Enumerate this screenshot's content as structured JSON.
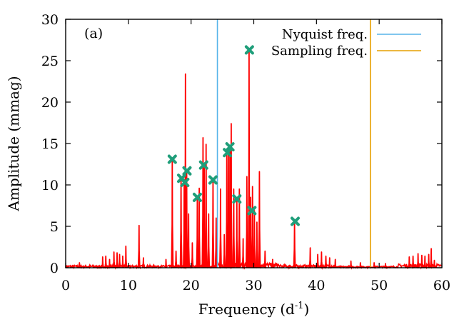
{
  "chart_data": {
    "type": "line",
    "panel_label": "(a)",
    "xlabel": "Frequency (d",
    "xlabel_superscript": "-1",
    "xlabel_suffix": ")",
    "ylabel": "Amplitude (mmag)",
    "xlim": [
      0,
      60
    ],
    "ylim": [
      0,
      30
    ],
    "xticks": [
      0,
      10,
      20,
      30,
      40,
      50,
      60
    ],
    "yticks": [
      0,
      5,
      10,
      15,
      20,
      25,
      30
    ],
    "grid": false,
    "legend_position": "top-right",
    "series": [
      {
        "kind": "spectrum",
        "color": "#ff0000",
        "noise_ranges": [
          [
            0,
            24,
            0.3
          ],
          [
            24,
            34,
            0.6
          ],
          [
            34,
            43,
            0.35
          ],
          [
            43,
            53,
            0.2
          ],
          [
            53,
            60,
            0.45
          ]
        ],
        "peaks": [
          [
            2.2,
            0.6
          ],
          [
            5.9,
            1.3
          ],
          [
            6.4,
            1.4
          ],
          [
            7.0,
            1.0
          ],
          [
            7.7,
            1.9
          ],
          [
            8.2,
            1.8
          ],
          [
            8.6,
            1.6
          ],
          [
            9.1,
            1.4
          ],
          [
            9.6,
            2.6
          ],
          [
            11.7,
            5.1
          ],
          [
            12.4,
            1.2
          ],
          [
            16.0,
            1.0
          ],
          [
            17.0,
            13.1
          ],
          [
            17.6,
            2.0
          ],
          [
            18.4,
            10.9
          ],
          [
            18.9,
            10.3
          ],
          [
            19.1,
            23.4
          ],
          [
            19.3,
            11.8
          ],
          [
            19.6,
            6.5
          ],
          [
            20.2,
            3.0
          ],
          [
            21.0,
            8.6
          ],
          [
            21.3,
            9.6
          ],
          [
            21.9,
            15.7
          ],
          [
            22.1,
            12.4
          ],
          [
            22.4,
            14.9
          ],
          [
            22.8,
            6.5
          ],
          [
            23.5,
            10.6
          ],
          [
            24.0,
            6.0
          ],
          [
            24.7,
            9.5
          ],
          [
            25.3,
            4.0
          ],
          [
            25.7,
            13.9
          ],
          [
            25.95,
            14.2
          ],
          [
            26.2,
            14.7
          ],
          [
            26.4,
            17.4
          ],
          [
            26.8,
            9.5
          ],
          [
            27.3,
            8.3
          ],
          [
            27.7,
            9.5
          ],
          [
            28.3,
            3.5
          ],
          [
            28.9,
            11.0
          ],
          [
            29.25,
            26.4
          ],
          [
            29.5,
            8.5
          ],
          [
            29.8,
            9.8
          ],
          [
            30.1,
            6.9
          ],
          [
            30.5,
            5.5
          ],
          [
            30.9,
            11.6
          ],
          [
            31.8,
            2.0
          ],
          [
            33.0,
            1.0
          ],
          [
            36.5,
            5.7
          ],
          [
            39.0,
            2.4
          ],
          [
            40.2,
            1.6
          ],
          [
            40.8,
            1.9
          ],
          [
            41.5,
            1.4
          ],
          [
            42.1,
            1.2
          ],
          [
            43.0,
            1.0
          ],
          [
            45.5,
            0.8
          ],
          [
            47.0,
            0.6
          ],
          [
            49.2,
            0.6
          ],
          [
            51.0,
            0.5
          ],
          [
            54.8,
            1.3
          ],
          [
            55.4,
            1.4
          ],
          [
            56.2,
            1.7
          ],
          [
            56.8,
            1.5
          ],
          [
            57.3,
            1.4
          ],
          [
            57.9,
            1.6
          ],
          [
            58.3,
            2.3
          ],
          [
            58.8,
            0.9
          ]
        ]
      },
      {
        "kind": "marked_peaks",
        "color": "#1f9e7a",
        "points": [
          [
            17.0,
            13.1
          ],
          [
            18.5,
            10.8
          ],
          [
            19.0,
            10.3
          ],
          [
            19.35,
            11.7
          ],
          [
            21.0,
            8.5
          ],
          [
            22.0,
            12.4
          ],
          [
            23.5,
            10.6
          ],
          [
            25.8,
            13.9
          ],
          [
            26.2,
            14.6
          ],
          [
            27.3,
            8.3
          ],
          [
            29.3,
            26.3
          ],
          [
            29.7,
            6.9
          ],
          [
            36.6,
            5.6
          ]
        ]
      }
    ],
    "vlines": [
      {
        "name": "Nyquist freq.",
        "x": 24.2,
        "color": "#56b4e9"
      },
      {
        "name": "Sampling freq.",
        "x": 48.6,
        "color": "#e69f00"
      }
    ]
  }
}
